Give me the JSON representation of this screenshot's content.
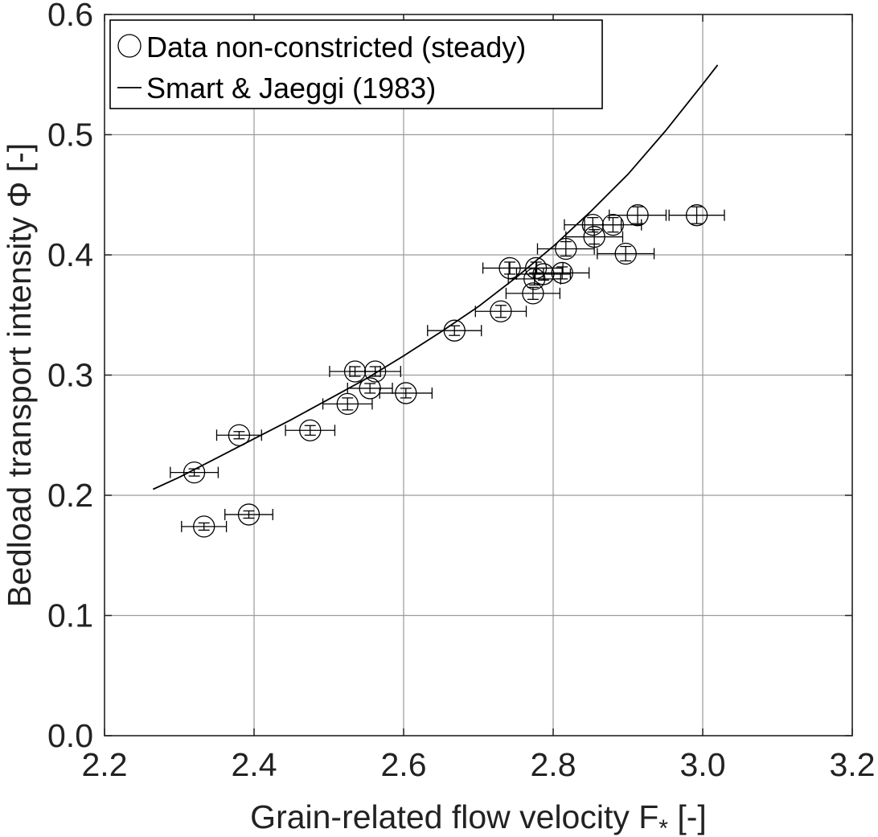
{
  "chart_data": {
    "type": "scatter",
    "xlabel": "Grain-related flow velocity F",
    "xlabel_subscript": "*",
    "xlabel_suffix": " [-]",
    "ylabel": "Bedload transport intensity Φ [-]",
    "xlim": [
      2.2,
      3.2
    ],
    "ylim": [
      0.0,
      0.6
    ],
    "xticks": [
      "2.2",
      "2.4",
      "2.6",
      "2.8",
      "3.0",
      "3.2"
    ],
    "yticks": [
      "0.0",
      "0.1",
      "0.2",
      "0.3",
      "0.4",
      "0.5",
      "0.6"
    ],
    "grid": true,
    "legend_position": "top-left",
    "legend": {
      "data_label": "Data non-constricted (steady)",
      "fit_label": "Smart & Jaeggi (1983)"
    },
    "series": [
      {
        "name": "Data non-constricted (steady)",
        "marker": "circle",
        "points": [
          {
            "x": 2.32,
            "y": 0.219,
            "xerr": 0.032,
            "yerr": 0.003
          },
          {
            "x": 2.333,
            "y": 0.174,
            "xerr": 0.03,
            "yerr": 0.003
          },
          {
            "x": 2.38,
            "y": 0.25,
            "xerr": 0.03,
            "yerr": 0.003
          },
          {
            "x": 2.393,
            "y": 0.184,
            "xerr": 0.032,
            "yerr": 0.003
          },
          {
            "x": 2.475,
            "y": 0.254,
            "xerr": 0.033,
            "yerr": 0.004
          },
          {
            "x": 2.525,
            "y": 0.276,
            "xerr": 0.033,
            "yerr": 0.005
          },
          {
            "x": 2.535,
            "y": 0.303,
            "xerr": 0.034,
            "yerr": 0.004
          },
          {
            "x": 2.555,
            "y": 0.289,
            "xerr": 0.03,
            "yerr": 0.004
          },
          {
            "x": 2.562,
            "y": 0.303,
            "xerr": 0.034,
            "yerr": 0.004
          },
          {
            "x": 2.603,
            "y": 0.285,
            "xerr": 0.035,
            "yerr": 0.004
          },
          {
            "x": 2.668,
            "y": 0.337,
            "xerr": 0.036,
            "yerr": 0.004
          },
          {
            "x": 2.73,
            "y": 0.353,
            "xerr": 0.034,
            "yerr": 0.005
          },
          {
            "x": 2.742,
            "y": 0.389,
            "xerr": 0.036,
            "yerr": 0.005
          },
          {
            "x": 2.773,
            "y": 0.368,
            "xerr": 0.036,
            "yerr": 0.005
          },
          {
            "x": 2.775,
            "y": 0.38,
            "xerr": 0.035,
            "yerr": 0.005
          },
          {
            "x": 2.777,
            "y": 0.389,
            "xerr": 0.036,
            "yerr": 0.005
          },
          {
            "x": 2.787,
            "y": 0.384,
            "xerr": 0.036,
            "yerr": 0.005
          },
          {
            "x": 2.812,
            "y": 0.385,
            "xerr": 0.036,
            "yerr": 0.005
          },
          {
            "x": 2.817,
            "y": 0.405,
            "xerr": 0.038,
            "yerr": 0.006
          },
          {
            "x": 2.853,
            "y": 0.425,
            "xerr": 0.038,
            "yerr": 0.006
          },
          {
            "x": 2.855,
            "y": 0.415,
            "xerr": 0.038,
            "yerr": 0.006
          },
          {
            "x": 2.88,
            "y": 0.425,
            "xerr": 0.038,
            "yerr": 0.006
          },
          {
            "x": 2.897,
            "y": 0.401,
            "xerr": 0.038,
            "yerr": 0.006
          },
          {
            "x": 2.913,
            "y": 0.433,
            "xerr": 0.038,
            "yerr": 0.007
          },
          {
            "x": 2.992,
            "y": 0.433,
            "xerr": 0.037,
            "yerr": 0.007
          }
        ]
      },
      {
        "name": "Smart & Jaeggi (1983)",
        "type": "line",
        "x": [
          2.265,
          2.3,
          2.35,
          2.4,
          2.45,
          2.5,
          2.55,
          2.6,
          2.65,
          2.7,
          2.75,
          2.8,
          2.85,
          2.9,
          2.95,
          3.0,
          3.02
        ],
        "y": [
          0.205,
          0.215,
          0.231,
          0.247,
          0.263,
          0.28,
          0.297,
          0.316,
          0.336,
          0.357,
          0.381,
          0.407,
          0.436,
          0.467,
          0.503,
          0.542,
          0.558
        ]
      }
    ]
  }
}
